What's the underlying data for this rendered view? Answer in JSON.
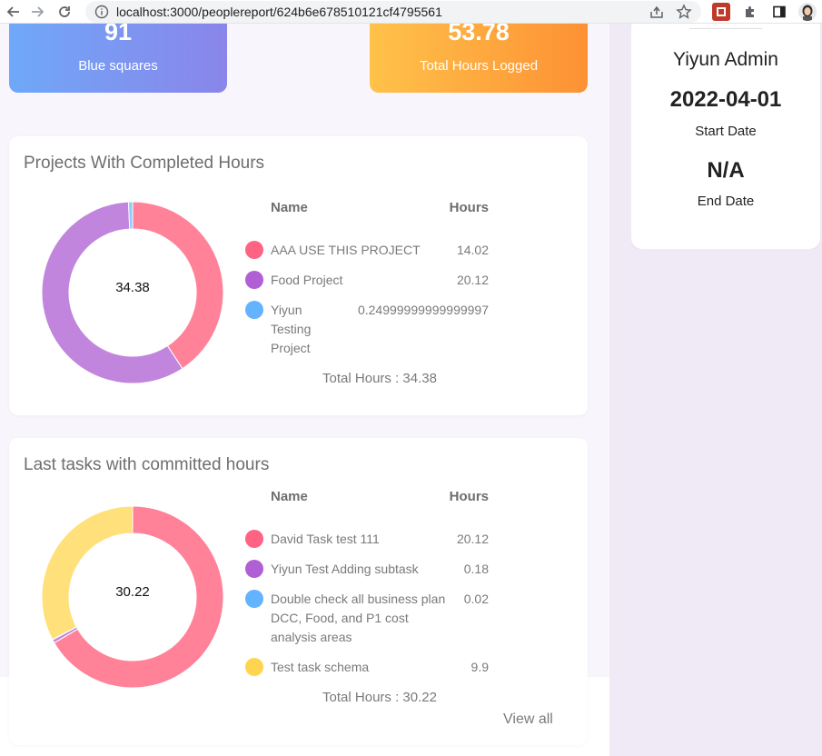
{
  "browser": {
    "url": "localhost:3000/peoplereport/624b6e678510121cf4795561"
  },
  "stats": {
    "blue": {
      "value": "91",
      "label": "Blue squares"
    },
    "orange": {
      "value": "53.78",
      "label": "Total Hours Logged"
    }
  },
  "profile": {
    "name": "Yiyun Admin",
    "start_date": "2022-04-01",
    "start_label": "Start Date",
    "end_date": "N/A",
    "end_label": "End Date"
  },
  "projects": {
    "title": "Projects With Completed Hours",
    "center": "34.38",
    "col_name": "Name",
    "col_hours": "Hours",
    "rows": [
      {
        "name": "AAA USE THIS PROJECT",
        "hours": "14.02",
        "value": 14.02,
        "color": "#ff6384"
      },
      {
        "name": "Food Project",
        "hours": "20.12",
        "value": 20.12,
        "color": "#b15fd4"
      },
      {
        "name": "Yiyun Testing Project",
        "hours": "0.24999999999999997",
        "value": 0.25,
        "color": "#63b3ff"
      }
    ],
    "total": "Total Hours : 34.38",
    "colors": [
      "#ff8299",
      "#c185dd",
      "#8ec9ff"
    ]
  },
  "tasks": {
    "title": "Last tasks with committed hours",
    "center": "30.22",
    "col_name": "Name",
    "col_hours": "Hours",
    "rows": [
      {
        "name": "David Task test 111",
        "hours": "20.12",
        "value": 20.12,
        "color": "#ff6384"
      },
      {
        "name": "Yiyun Test Adding subtask",
        "hours": "0.18",
        "value": 0.18,
        "color": "#b15fd4"
      },
      {
        "name": "Double check all business plan DCC, Food, and P1 cost analysis areas",
        "hours": "0.02",
        "value": 0.02,
        "color": "#63b3ff"
      },
      {
        "name": "Test task schema",
        "hours": "9.9",
        "value": 9.9,
        "color": "#ffd54f"
      }
    ],
    "total": "Total Hours : 30.22",
    "view_all": "View all",
    "colors": [
      "#ff8299",
      "#c185dd",
      "#8ec9ff",
      "#ffe07a"
    ]
  }
}
